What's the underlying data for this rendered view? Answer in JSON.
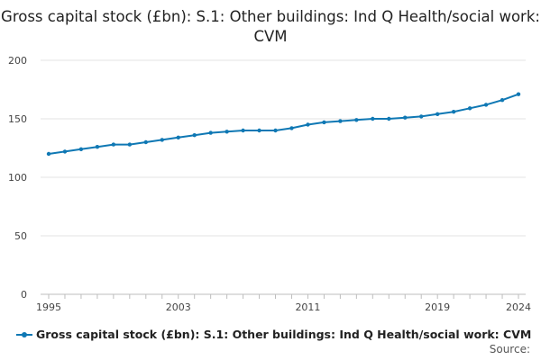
{
  "chart_data": {
    "type": "line",
    "title": "Gross capital stock (£bn): S.1: Other buildings: Ind Q Health/social work: CVM",
    "xlabel": "",
    "ylabel": "",
    "ylim": [
      0,
      200
    ],
    "yticks": [
      0,
      50,
      100,
      150,
      200
    ],
    "xlim": [
      1995,
      2024
    ],
    "xticks": [
      1995,
      2003,
      2011,
      2019,
      2024
    ],
    "grid": true,
    "legend_position": "bottom",
    "series": [
      {
        "name": "Gross capital stock (£bn): S.1: Other buildings: Ind Q Health/social work: CVM",
        "color": "#0f78b4",
        "x": [
          1995,
          1996,
          1997,
          1998,
          1999,
          2000,
          2001,
          2002,
          2003,
          2004,
          2005,
          2006,
          2007,
          2008,
          2009,
          2010,
          2011,
          2012,
          2013,
          2014,
          2015,
          2016,
          2017,
          2018,
          2019,
          2020,
          2021,
          2022,
          2023,
          2024
        ],
        "values": [
          120,
          122,
          124,
          126,
          128,
          128,
          130,
          132,
          134,
          136,
          138,
          139,
          140,
          140,
          140,
          142,
          145,
          147,
          148,
          149,
          150,
          150,
          151,
          152,
          154,
          156,
          159,
          162,
          166,
          171
        ]
      }
    ]
  },
  "source_label": "Source:"
}
